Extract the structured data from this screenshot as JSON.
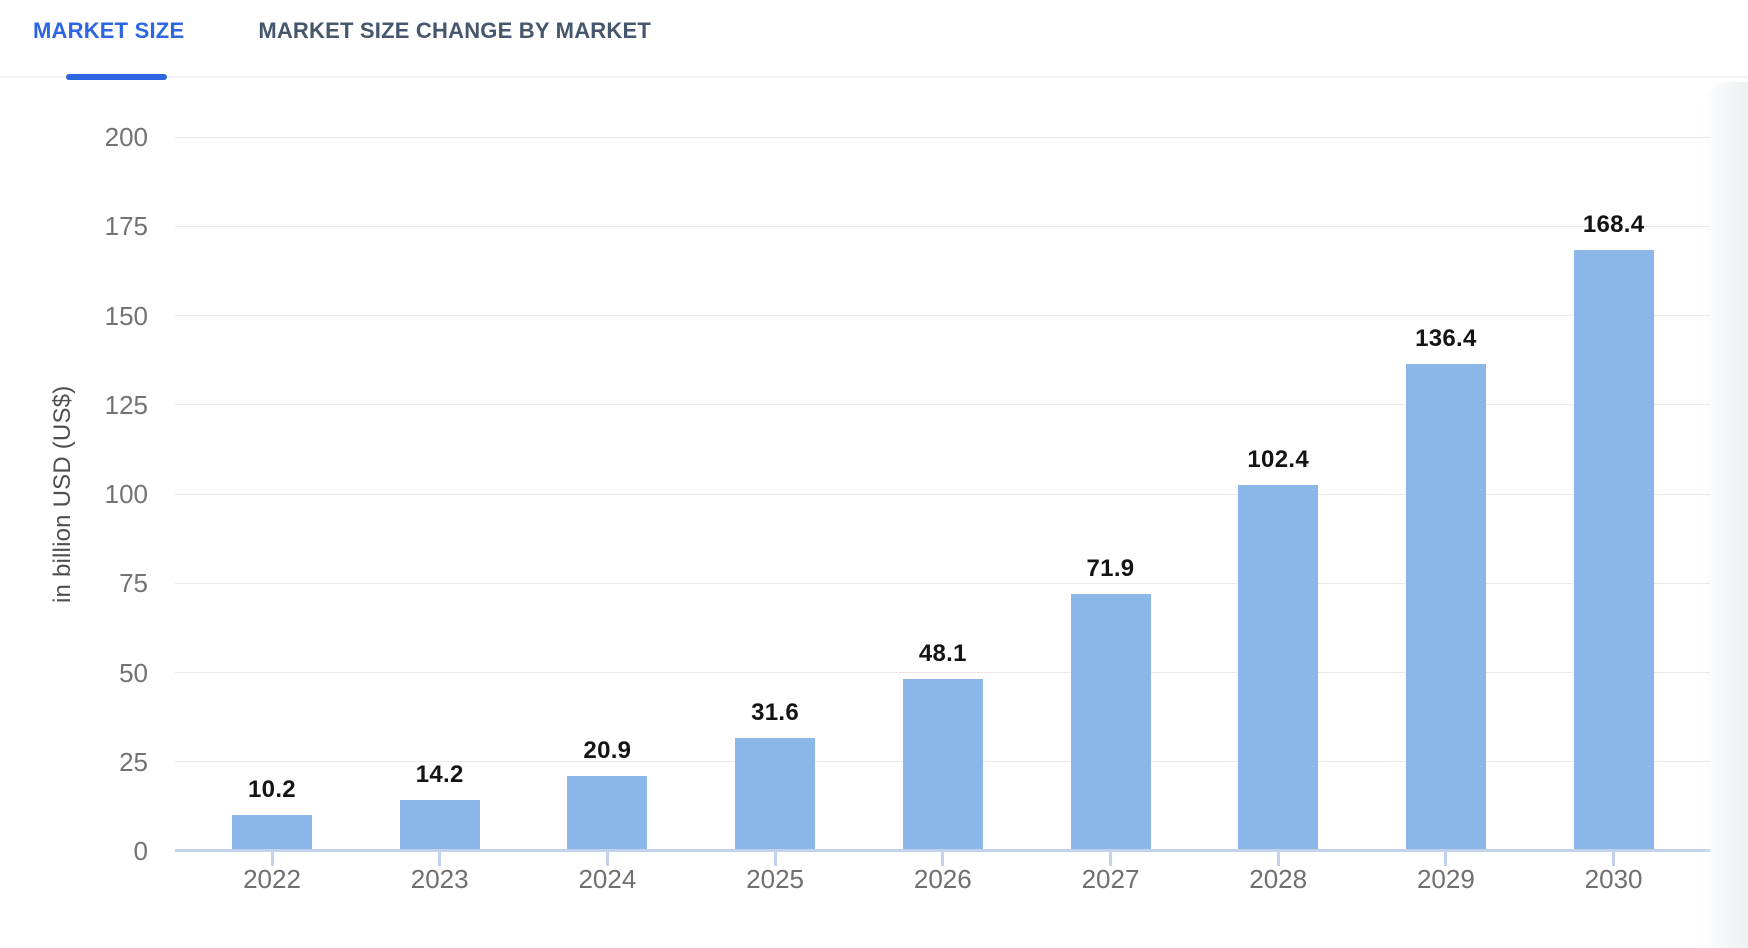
{
  "tabs": [
    {
      "label": "MARKET SIZE",
      "active": true
    },
    {
      "label": "MARKET SIZE CHANGE BY MARKET",
      "active": false
    }
  ],
  "chart_data": {
    "type": "bar",
    "categories": [
      "2022",
      "2023",
      "2024",
      "2025",
      "2026",
      "2027",
      "2028",
      "2029",
      "2030"
    ],
    "values": [
      10.2,
      14.2,
      20.9,
      31.6,
      48.1,
      71.9,
      102.4,
      136.4,
      168.4
    ],
    "title": "",
    "xlabel": "",
    "ylabel": "in billion USD (US$)",
    "ylim": [
      0,
      200
    ],
    "yticks": [
      0,
      25,
      50,
      75,
      100,
      125,
      150,
      175,
      200
    ],
    "grid": true,
    "legend": "none",
    "value_labels_shown": true,
    "colors": {
      "bar": "#8bb7e8",
      "axis_line": "#c3d2ec",
      "gridline": "#e9e9eb",
      "tick_label": "#6f6f6f",
      "value_label": "#141418",
      "active_tab": "#2d66e1",
      "inactive_tab": "#46566d"
    }
  }
}
